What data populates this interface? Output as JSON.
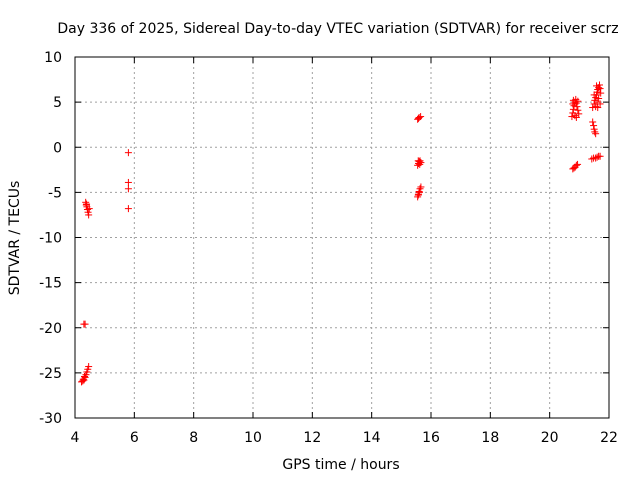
{
  "chart_data": {
    "type": "scatter",
    "title": "Day 336 of 2025, Sidereal Day-to-day VTEC variation (SDTVAR) for receiver scrz",
    "xlabel": "GPS time / hours",
    "ylabel": "SDTVAR / TECUs",
    "xlim": [
      4,
      22
    ],
    "ylim": [
      -30,
      10
    ],
    "xticks": [
      4,
      6,
      8,
      10,
      12,
      14,
      16,
      18,
      20,
      22
    ],
    "yticks": [
      -30,
      -25,
      -20,
      -15,
      -10,
      -5,
      0,
      5,
      10
    ],
    "xtick_labels": [
      "4",
      "6",
      "8",
      "10",
      "12",
      "14",
      "16",
      "18",
      "20",
      "22"
    ],
    "ytick_labels": [
      "-30",
      "-25",
      "-20",
      "-15",
      "-10",
      "-5",
      "0",
      "5",
      "10"
    ],
    "grid": true,
    "marker": "+",
    "color": "#ff0000",
    "series": [
      {
        "name": "scrz",
        "points": [
          [
            4.22,
            -26.0
          ],
          [
            4.26,
            -25.9
          ],
          [
            4.3,
            -25.8
          ],
          [
            4.34,
            -25.5
          ],
          [
            4.37,
            -25.2
          ],
          [
            4.4,
            -24.9
          ],
          [
            4.43,
            -24.6
          ],
          [
            4.46,
            -24.3
          ],
          [
            4.28,
            -25.7
          ],
          [
            4.32,
            -25.4
          ],
          [
            4.3,
            -19.6
          ],
          [
            4.34,
            -19.6
          ],
          [
            4.36,
            -6.1
          ],
          [
            4.38,
            -6.4
          ],
          [
            4.4,
            -6.6
          ],
          [
            4.42,
            -6.9
          ],
          [
            4.44,
            -7.2
          ],
          [
            4.46,
            -7.5
          ],
          [
            4.48,
            -6.8
          ],
          [
            4.39,
            -6.3
          ],
          [
            5.8,
            -0.6
          ],
          [
            5.8,
            -3.9
          ],
          [
            5.8,
            -4.6
          ],
          [
            5.8,
            -6.8
          ],
          [
            15.55,
            3.1
          ],
          [
            15.6,
            3.3
          ],
          [
            15.65,
            3.4
          ],
          [
            15.58,
            3.2
          ],
          [
            15.55,
            -2.0
          ],
          [
            15.58,
            -1.8
          ],
          [
            15.6,
            -1.6
          ],
          [
            15.63,
            -1.5
          ],
          [
            15.66,
            -1.7
          ],
          [
            15.62,
            -1.9
          ],
          [
            15.57,
            -1.5
          ],
          [
            15.55,
            -5.5
          ],
          [
            15.58,
            -5.2
          ],
          [
            15.6,
            -4.9
          ],
          [
            15.63,
            -4.6
          ],
          [
            15.66,
            -4.4
          ],
          [
            15.61,
            -5.0
          ],
          [
            15.57,
            -5.3
          ],
          [
            20.75,
            3.4
          ],
          [
            20.78,
            3.8
          ],
          [
            20.8,
            4.2
          ],
          [
            20.82,
            4.6
          ],
          [
            20.85,
            5.0
          ],
          [
            20.88,
            5.3
          ],
          [
            20.9,
            4.9
          ],
          [
            20.92,
            4.5
          ],
          [
            20.95,
            4.1
          ],
          [
            20.98,
            3.7
          ],
          [
            20.85,
            3.5
          ],
          [
            20.8,
            5.2
          ],
          [
            20.9,
            3.3
          ],
          [
            20.95,
            5.1
          ],
          [
            20.78,
            4.8
          ],
          [
            20.78,
            -2.4
          ],
          [
            20.82,
            -2.3
          ],
          [
            20.86,
            -2.2
          ],
          [
            20.9,
            -2.0
          ],
          [
            20.94,
            -1.9
          ],
          [
            21.45,
            4.4
          ],
          [
            21.5,
            4.8
          ],
          [
            21.52,
            5.2
          ],
          [
            21.55,
            5.5
          ],
          [
            21.58,
            5.8
          ],
          [
            21.6,
            6.1
          ],
          [
            21.62,
            6.4
          ],
          [
            21.65,
            6.6
          ],
          [
            21.68,
            6.9
          ],
          [
            21.7,
            6.5
          ],
          [
            21.72,
            6.0
          ],
          [
            21.55,
            4.5
          ],
          [
            21.6,
            5.0
          ],
          [
            21.65,
            5.4
          ],
          [
            21.7,
            4.8
          ],
          [
            21.5,
            5.8
          ],
          [
            21.58,
            6.8
          ],
          [
            21.62,
            4.4
          ],
          [
            21.45,
            2.8
          ],
          [
            21.48,
            2.4
          ],
          [
            21.5,
            2.0
          ],
          [
            21.52,
            1.7
          ],
          [
            21.55,
            1.5
          ],
          [
            21.42,
            -1.3
          ],
          [
            21.48,
            -1.2
          ],
          [
            21.55,
            -1.2
          ],
          [
            21.6,
            -1.1
          ],
          [
            21.65,
            -1.0
          ],
          [
            21.7,
            -1.0
          ]
        ]
      }
    ]
  }
}
